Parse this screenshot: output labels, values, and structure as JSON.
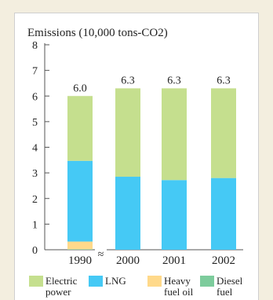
{
  "chart_data": {
    "type": "bar",
    "stacked": true,
    "title": "Emissions (10,000 tons-CO2)",
    "categories": [
      "1990",
      "2000",
      "2001",
      "2002"
    ],
    "axis_break_between": [
      "1990",
      "2000"
    ],
    "axis_break_symbol": "≈",
    "ylim": [
      0,
      8
    ],
    "yticks": [
      "0",
      "1",
      "2",
      "3",
      "4",
      "5",
      "6",
      "7",
      "8"
    ],
    "totals": [
      "6.0",
      "6.3",
      "6.3",
      "6.3"
    ],
    "total_values": [
      6.0,
      6.3,
      6.3,
      6.3
    ],
    "series": [
      {
        "name": "Diesel fuel",
        "values": [
          0.02,
          0.0,
          0.0,
          0.0
        ],
        "color": "#7dcc9c"
      },
      {
        "name": "Heavy fuel oil",
        "values": [
          0.3,
          0.0,
          0.0,
          0.0
        ],
        "color": "#ffd98a"
      },
      {
        "name": "LNG",
        "values": [
          3.15,
          2.85,
          2.72,
          2.8
        ],
        "color": "#45c9f5"
      },
      {
        "name": "Electric power",
        "values": [
          2.53,
          3.45,
          3.58,
          3.5
        ],
        "color": "#c5df8e"
      }
    ],
    "legend": [
      {
        "line1": "Electric",
        "line2": "power",
        "color": "#c5df8e"
      },
      {
        "line1": "LNG",
        "line2": "",
        "color": "#45c9f5"
      },
      {
        "line1": "Heavy",
        "line2": "fuel oil",
        "color": "#ffd98a"
      },
      {
        "line1": "Diesel",
        "line2": "fuel",
        "color": "#7dcc9c"
      }
    ],
    "legend_position": "bottom"
  }
}
